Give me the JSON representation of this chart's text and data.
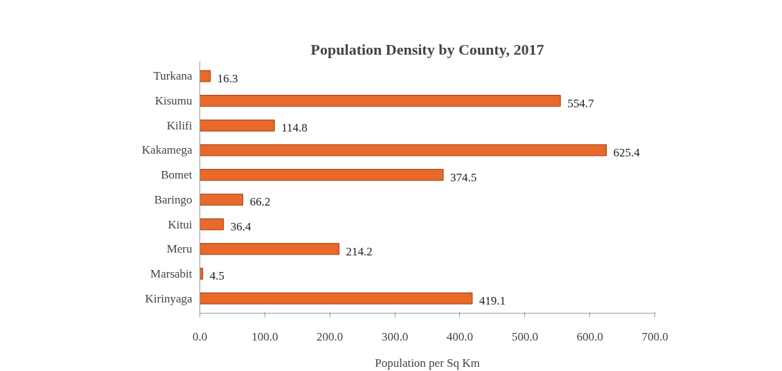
{
  "chart_data": {
    "type": "bar",
    "orientation": "horizontal",
    "title": "Population Density by County, 2017",
    "xlabel": "Population per Sq Km",
    "categories": [
      "Turkana",
      "Kisumu",
      "Kilifi",
      "Kakamega",
      "Bomet",
      "Baringo",
      "Kitui",
      "Meru",
      "Marsabit",
      "Kirinyaga"
    ],
    "values": [
      16.3,
      554.7,
      114.8,
      625.4,
      374.5,
      66.2,
      36.4,
      214.2,
      4.5,
      419.1
    ],
    "color": "#e8692a",
    "xlim": [
      0,
      700
    ],
    "xticks": [
      {
        "value": 0,
        "label": "0.0"
      },
      {
        "value": 100,
        "label": "100.0"
      },
      {
        "value": 200,
        "label": "200.0"
      },
      {
        "value": 300,
        "label": "300.0"
      },
      {
        "value": 400,
        "label": "400.0"
      },
      {
        "value": 500,
        "label": "500.0"
      },
      {
        "value": 600,
        "label": "600.0"
      },
      {
        "value": 700,
        "label": "700.0"
      }
    ],
    "data_labels": true,
    "grid": false
  }
}
